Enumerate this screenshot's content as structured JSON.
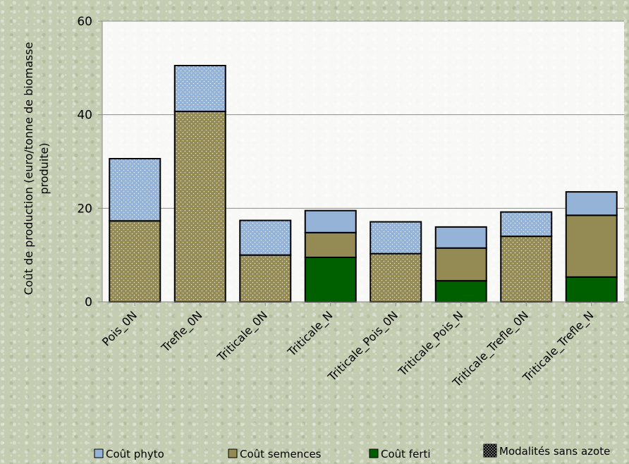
{
  "chart_data": {
    "type": "bar",
    "stacked": true,
    "categories": [
      "Pois_0N",
      "Trefle_0N",
      "Triticale_0N",
      "Triticale_N",
      "Triticale_Pois_0N",
      "Triticale_Pois_N",
      "Triticale_Trefle_0N",
      "Triticale_Trefle_N"
    ],
    "series": [
      {
        "name": "Coût ferti",
        "color": "#006000",
        "values": [
          0,
          0,
          0,
          9.5,
          0,
          4.5,
          0,
          5.3
        ]
      },
      {
        "name": "Coût semences",
        "color": "#948a54",
        "values": [
          17.3,
          40.7,
          10.0,
          5.3,
          10.3,
          7.0,
          14.0,
          13.2
        ]
      },
      {
        "name": "Coût phyto",
        "color": "#95b3d7",
        "values": [
          13.3,
          9.8,
          7.4,
          4.7,
          6.8,
          4.5,
          5.2,
          5.0
        ]
      }
    ],
    "no_nitrogen_dotted": [
      true,
      true,
      true,
      false,
      true,
      false,
      true,
      false
    ],
    "ylabel": "Coût de production (euro/tonne de biomasse produite)",
    "ylabel_lines": [
      "Coût de production (euro/tonne de biomasse",
      "produite)"
    ],
    "ylim": [
      0,
      60
    ],
    "yticks": [
      0,
      20,
      40,
      60
    ],
    "grid": true,
    "legend_position": "bottom",
    "legend": [
      {
        "label": "Coût phyto",
        "color": "#95b3d7"
      },
      {
        "label": "Coût semences",
        "color": "#948a54"
      },
      {
        "label": "Coût ferti",
        "color": "#006000"
      },
      {
        "label": "Modalités sans azote",
        "color": "#000000",
        "pattern": "dotted"
      }
    ]
  }
}
